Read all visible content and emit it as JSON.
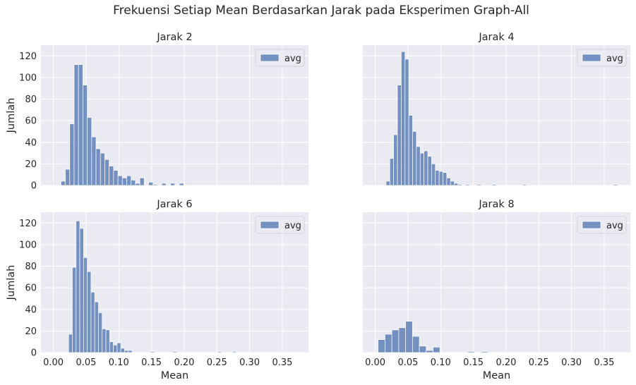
{
  "figure": {
    "title": "Frekuensi Setiap Mean Berdasarkan Jarak pada Eksperimen Graph-All",
    "colors": {
      "face": "#eaeaf2",
      "grid": "#ffffff",
      "bar": "#4c72b0",
      "text": "#262626"
    }
  },
  "chart_data": [
    {
      "type": "bar",
      "title": "Jarak 2",
      "xlabel": "",
      "ylabel": "Jumlah",
      "legend": {
        "label": "avg",
        "position": "top-right"
      },
      "xlim": [
        -0.019,
        0.39
      ],
      "ylim": [
        0,
        130
      ],
      "xticks": [
        0.0,
        0.05,
        0.1,
        0.15,
        0.2,
        0.25,
        0.3,
        0.35
      ],
      "yticks": [
        0,
        20,
        40,
        60,
        80,
        100,
        120
      ],
      "xtick_labels_visible": false,
      "ytick_labels_visible": true,
      "grid": true,
      "bins": [
        0.0116,
        0.0183,
        0.025,
        0.0317,
        0.0384,
        0.0451,
        0.0518,
        0.0585,
        0.0652,
        0.0719,
        0.0786,
        0.0853,
        0.092,
        0.0987,
        0.1054,
        0.1121,
        0.1188,
        0.1255,
        0.1322,
        0.1389,
        0.1456,
        0.1523,
        0.159,
        0.1657,
        0.1724,
        0.1791,
        0.1858,
        0.1925,
        0.1992
      ],
      "counts": [
        4,
        15,
        57,
        112,
        112,
        93,
        63,
        45,
        34,
        30,
        24,
        18,
        14,
        9,
        7,
        9,
        5,
        2,
        7,
        0,
        3,
        1,
        0,
        2,
        0,
        2,
        0,
        2
      ]
    },
    {
      "type": "bar",
      "title": "Jarak 4",
      "xlabel": "",
      "ylabel": "",
      "legend": {
        "label": "avg",
        "position": "top-right"
      },
      "xlim": [
        -0.019,
        0.39
      ],
      "ylim": [
        0,
        130
      ],
      "xticks": [
        0.0,
        0.05,
        0.1,
        0.15,
        0.2,
        0.25,
        0.3,
        0.35
      ],
      "yticks": [
        0,
        20,
        40,
        60,
        80,
        100,
        120
      ],
      "xtick_labels_visible": false,
      "ytick_labels_visible": false,
      "grid": true,
      "bins": [
        0.0165,
        0.0223,
        0.0281,
        0.0339,
        0.0397,
        0.0455,
        0.0513,
        0.0571,
        0.0629,
        0.0687,
        0.0745,
        0.0803,
        0.0861,
        0.0919,
        0.0977,
        0.1035,
        0.1093,
        0.1151,
        0.1209,
        0.1267,
        0.1325,
        0.1383,
        0.1441,
        0.1499,
        0.1557,
        0.1615,
        0.1673,
        0.1731,
        0.1789,
        0.1847,
        0.1905,
        0.1963,
        0.2021,
        0.2079,
        0.2137,
        0.2195,
        0.2253,
        0.2311,
        0.2369,
        0.2427,
        0.2485,
        0.2543,
        0.2601,
        0.2659,
        0.2717,
        0.2775,
        0.2833,
        0.2891,
        0.2949,
        0.3007,
        0.3065,
        0.3123,
        0.3181,
        0.3239,
        0.3297,
        0.3355,
        0.3413,
        0.3471,
        0.3529,
        0.3587,
        0.3645,
        0.3703
      ],
      "counts": [
        4,
        25,
        47,
        93,
        124,
        117,
        65,
        50,
        36,
        30,
        32,
        27,
        20,
        14,
        13,
        12,
        7,
        4,
        2,
        1,
        0,
        1,
        0,
        0,
        1,
        0,
        0,
        0,
        1,
        0,
        0,
        0,
        0,
        0,
        0,
        0,
        1,
        0,
        0,
        0,
        0,
        0,
        0,
        0,
        0,
        0,
        0,
        0,
        0,
        0,
        0,
        0,
        0,
        0,
        0,
        0,
        0,
        0,
        0,
        0,
        1
      ]
    },
    {
      "type": "bar",
      "title": "Jarak 6",
      "xlabel": "Mean",
      "ylabel": "Jumlah",
      "legend": {
        "label": "avg",
        "position": "top-right"
      },
      "xlim": [
        -0.019,
        0.39
      ],
      "ylim": [
        0,
        130
      ],
      "xticks": [
        0.0,
        0.05,
        0.1,
        0.15,
        0.2,
        0.25,
        0.3,
        0.35
      ],
      "xtick_labels": [
        "0.00",
        "0.05",
        "0.10",
        "0.15",
        "0.20",
        "0.25",
        "0.30",
        "0.35"
      ],
      "yticks": [
        0,
        20,
        40,
        60,
        80,
        100,
        120
      ],
      "xtick_labels_visible": true,
      "ytick_labels_visible": true,
      "grid": true,
      "bins": [
        0.0233,
        0.029,
        0.0347,
        0.0404,
        0.0461,
        0.0518,
        0.0575,
        0.0632,
        0.0689,
        0.0746,
        0.0803,
        0.086,
        0.0917,
        0.0974,
        0.1031,
        0.1088,
        0.1145,
        0.1202,
        0.1259,
        0.1316,
        0.1373,
        0.143,
        0.1487,
        0.1544,
        0.1601,
        0.1658,
        0.1715,
        0.1772,
        0.1829,
        0.1886,
        0.1943,
        0.2,
        0.2057,
        0.2114,
        0.2171,
        0.2228,
        0.2285,
        0.2342,
        0.2399,
        0.2456,
        0.2513,
        0.257,
        0.2627,
        0.2684,
        0.2741,
        0.2798
      ],
      "counts": [
        17,
        79,
        122,
        115,
        88,
        75,
        56,
        47,
        37,
        22,
        21,
        10,
        7,
        9,
        4,
        2,
        2,
        0,
        0,
        0,
        0,
        0,
        1,
        0,
        0,
        0,
        0,
        0,
        1,
        0,
        0,
        0,
        0,
        0,
        0,
        0,
        0,
        0,
        0,
        0,
        1,
        0,
        0,
        0,
        1
      ]
    },
    {
      "type": "bar",
      "title": "Jarak 8",
      "xlabel": "Mean",
      "ylabel": "",
      "legend": {
        "label": "avg",
        "position": "top-right"
      },
      "xlim": [
        -0.019,
        0.39
      ],
      "ylim": [
        0,
        130
      ],
      "xticks": [
        0.0,
        0.05,
        0.1,
        0.15,
        0.2,
        0.25,
        0.3,
        0.35
      ],
      "xtick_labels": [
        "0.00",
        "0.05",
        "0.10",
        "0.15",
        "0.20",
        "0.25",
        "0.30",
        "0.35"
      ],
      "yticks": [
        0,
        20,
        40,
        60,
        80,
        100,
        120
      ],
      "xtick_labels_visible": true,
      "ytick_labels_visible": false,
      "grid": true,
      "bins": [
        0.0044,
        0.0149,
        0.0254,
        0.0359,
        0.0464,
        0.0569,
        0.0674,
        0.0779,
        0.0884,
        0.0989,
        0.1094,
        0.1199,
        0.1304,
        0.1409,
        0.1514,
        0.1619,
        0.1724
      ],
      "counts": [
        12,
        17,
        21,
        23,
        29,
        15,
        6,
        2,
        5,
        0,
        0,
        0,
        0,
        1,
        0,
        1
      ]
    }
  ]
}
